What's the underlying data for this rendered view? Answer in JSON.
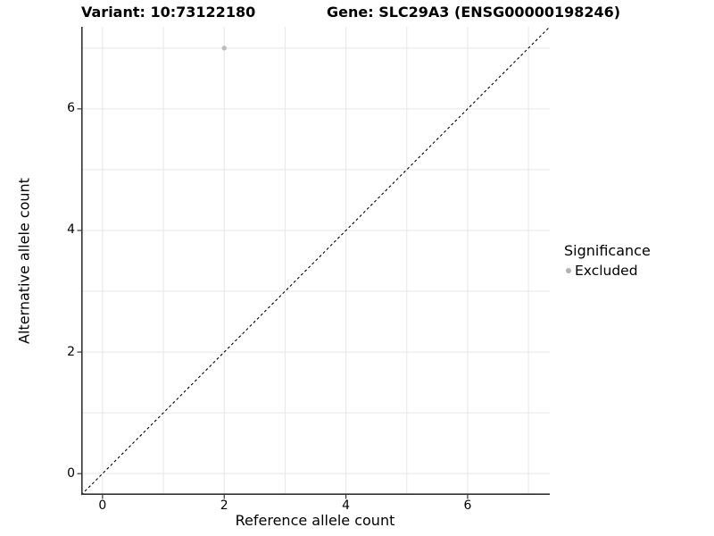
{
  "chart": {
    "title_left": "Variant: 10:73122180",
    "title_right": "Gene: SLC29A3 (ENSG00000198246)"
  },
  "chart_data": {
    "type": "scatter",
    "title": "Variant: 10:73122180    Gene: SLC29A3 (ENSG00000198246)",
    "xlabel": "Reference allele count",
    "ylabel": "Alternative allele count",
    "xlim": [
      0,
      7
    ],
    "ylim": [
      0,
      7
    ],
    "x_ticks": [
      0,
      2,
      4,
      6
    ],
    "y_ticks": [
      0,
      2,
      4,
      6
    ],
    "x_gridlines": [
      0,
      1,
      2,
      3,
      4,
      5,
      6,
      7
    ],
    "y_gridlines": [
      0,
      1,
      2,
      3,
      4,
      5,
      6,
      7
    ],
    "grid": true,
    "series": [
      {
        "name": "Excluded",
        "points": [
          {
            "x": 2,
            "y": 7
          }
        ],
        "color": "#bdbdbd"
      }
    ],
    "reference_line": {
      "slope": 1,
      "intercept": 0,
      "style": "dashed",
      "color": "#000000"
    },
    "legend": {
      "title": "Significance",
      "position": "right",
      "entries": [
        {
          "label": "Excluded",
          "color": "#b3b3b3"
        }
      ]
    },
    "colors": {
      "background": "#ffffff",
      "gridline": "#e7e7e7",
      "axis_line": "#333333",
      "tick_mark": "#333333",
      "text": "#000000",
      "point": "#bdbdbd"
    }
  }
}
